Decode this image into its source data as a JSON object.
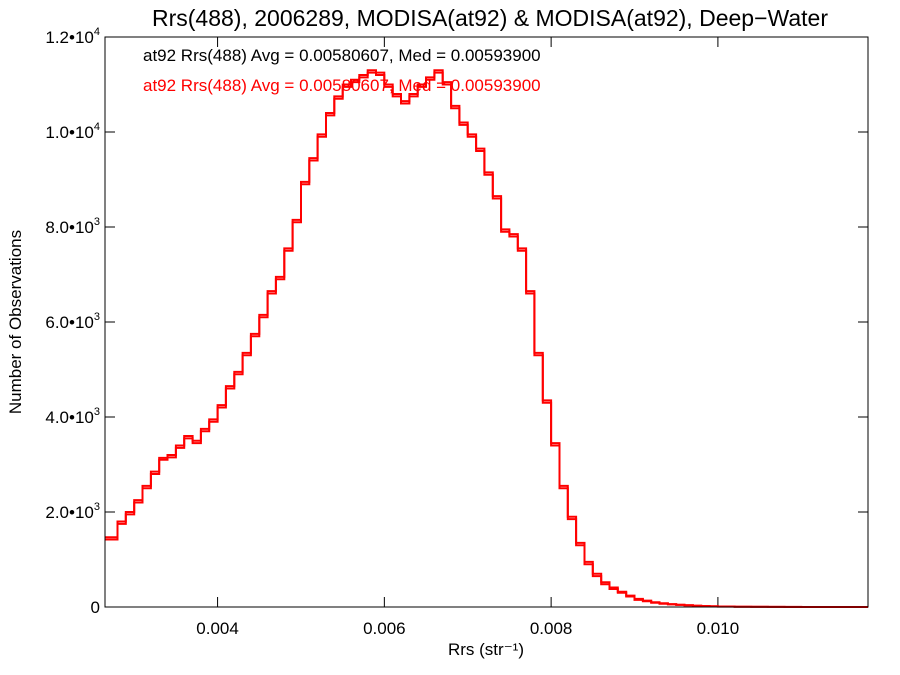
{
  "chart_data": {
    "type": "histogram",
    "title": "Rrs(488), 2006289, MODISA(at92) & MODISA(at92), Deep−Water",
    "xlabel": "Rrs (str⁻¹)",
    "ylabel": "Number of Observations",
    "xlim": [
      0.00265,
      0.0118
    ],
    "ylim": [
      0,
      12000
    ],
    "x_ticks": [
      {
        "value": 0.004,
        "label": "0.004"
      },
      {
        "value": 0.006,
        "label": "0.006"
      },
      {
        "value": 0.008,
        "label": "0.008"
      },
      {
        "value": 0.01,
        "label": "0.010"
      }
    ],
    "y_ticks": [
      {
        "value": 0,
        "label": "0"
      },
      {
        "value": 2000,
        "label": "2.0•103"
      },
      {
        "value": 4000,
        "label": "4.0•103"
      },
      {
        "value": 6000,
        "label": "6.0•103"
      },
      {
        "value": 8000,
        "label": "8.0•103"
      },
      {
        "value": 10000,
        "label": "1.0•104"
      },
      {
        "value": 12000,
        "label": "1.2•104"
      }
    ],
    "annotations": [
      {
        "text": "at92 Rrs(488) Avg = 0.00580607, Med = 0.00593900",
        "color": "#000000"
      },
      {
        "text": "at92 Rrs(488) Avg = 0.00580607, Med = 0.00593900",
        "color": "#ff0000"
      }
    ],
    "series": [
      {
        "color": "#ff0000",
        "points": [
          [
            0.00265,
            1420
          ],
          [
            0.0028,
            1750
          ],
          [
            0.0029,
            1950
          ],
          [
            0.003,
            2200
          ],
          [
            0.0031,
            2500
          ],
          [
            0.0032,
            2800
          ],
          [
            0.0033,
            3100
          ],
          [
            0.0034,
            3150
          ],
          [
            0.0035,
            3350
          ],
          [
            0.0036,
            3550
          ],
          [
            0.0037,
            3450
          ],
          [
            0.0038,
            3700
          ],
          [
            0.0039,
            3900
          ],
          [
            0.004,
            4200
          ],
          [
            0.0041,
            4600
          ],
          [
            0.0042,
            4900
          ],
          [
            0.0043,
            5300
          ],
          [
            0.0044,
            5700
          ],
          [
            0.0045,
            6100
          ],
          [
            0.0046,
            6600
          ],
          [
            0.0047,
            6900
          ],
          [
            0.0048,
            7500
          ],
          [
            0.0049,
            8100
          ],
          [
            0.005,
            8900
          ],
          [
            0.0051,
            9400
          ],
          [
            0.0052,
            9900
          ],
          [
            0.0053,
            10350
          ],
          [
            0.0054,
            10700
          ],
          [
            0.0055,
            10950
          ],
          [
            0.0056,
            11050
          ],
          [
            0.0057,
            11150
          ],
          [
            0.0058,
            11250
          ],
          [
            0.0059,
            11200
          ],
          [
            0.006,
            10950
          ],
          [
            0.0061,
            10750
          ],
          [
            0.0062,
            10600
          ],
          [
            0.0063,
            10750
          ],
          [
            0.0064,
            10950
          ],
          [
            0.0065,
            11100
          ],
          [
            0.0066,
            11250
          ],
          [
            0.0067,
            11000
          ],
          [
            0.0068,
            10500
          ],
          [
            0.0069,
            10150
          ],
          [
            0.007,
            9900
          ],
          [
            0.0071,
            9600
          ],
          [
            0.0072,
            9100
          ],
          [
            0.0073,
            8600
          ],
          [
            0.0074,
            7900
          ],
          [
            0.0075,
            7800
          ],
          [
            0.0076,
            7500
          ],
          [
            0.0077,
            6600
          ],
          [
            0.0078,
            5300
          ],
          [
            0.0079,
            4300
          ],
          [
            0.008,
            3400
          ],
          [
            0.0081,
            2500
          ],
          [
            0.0082,
            1850
          ],
          [
            0.0083,
            1300
          ],
          [
            0.0084,
            900
          ],
          [
            0.0085,
            650
          ],
          [
            0.0086,
            480
          ],
          [
            0.0087,
            380
          ],
          [
            0.0088,
            300
          ],
          [
            0.0089,
            220
          ],
          [
            0.009,
            150
          ],
          [
            0.0091,
            120
          ],
          [
            0.0092,
            90
          ],
          [
            0.0093,
            70
          ],
          [
            0.0094,
            55
          ],
          [
            0.0095,
            45
          ],
          [
            0.0096,
            35
          ],
          [
            0.0097,
            25
          ],
          [
            0.0098,
            18
          ],
          [
            0.0099,
            12
          ],
          [
            0.01,
            8
          ],
          [
            0.0102,
            5
          ],
          [
            0.0104,
            3
          ],
          [
            0.0106,
            2
          ],
          [
            0.0108,
            1
          ],
          [
            0.011,
            1
          ],
          [
            0.0113,
            0
          ],
          [
            0.0118,
            0
          ]
        ]
      },
      {
        "color": "#ff0000",
        "points": [
          [
            0.00265,
            1470
          ],
          [
            0.0028,
            1800
          ],
          [
            0.0029,
            2000
          ],
          [
            0.003,
            2250
          ],
          [
            0.0031,
            2550
          ],
          [
            0.0032,
            2850
          ],
          [
            0.0033,
            3140
          ],
          [
            0.0034,
            3200
          ],
          [
            0.0035,
            3400
          ],
          [
            0.0036,
            3600
          ],
          [
            0.0037,
            3500
          ],
          [
            0.0038,
            3750
          ],
          [
            0.0039,
            3950
          ],
          [
            0.004,
            4250
          ],
          [
            0.0041,
            4650
          ],
          [
            0.0042,
            4950
          ],
          [
            0.0043,
            5350
          ],
          [
            0.0044,
            5750
          ],
          [
            0.0045,
            6150
          ],
          [
            0.0046,
            6650
          ],
          [
            0.0047,
            6950
          ],
          [
            0.0048,
            7550
          ],
          [
            0.0049,
            8150
          ],
          [
            0.005,
            8950
          ],
          [
            0.0051,
            9450
          ],
          [
            0.0052,
            9950
          ],
          [
            0.0053,
            10400
          ],
          [
            0.0054,
            10750
          ],
          [
            0.0055,
            11000
          ],
          [
            0.0056,
            11100
          ],
          [
            0.0057,
            11200
          ],
          [
            0.0058,
            11300
          ],
          [
            0.0059,
            11250
          ],
          [
            0.006,
            11000
          ],
          [
            0.0061,
            10800
          ],
          [
            0.0062,
            10650
          ],
          [
            0.0063,
            10800
          ],
          [
            0.0064,
            11000
          ],
          [
            0.0065,
            11150
          ],
          [
            0.0066,
            11300
          ],
          [
            0.0067,
            11050
          ],
          [
            0.0068,
            10550
          ],
          [
            0.0069,
            10200
          ],
          [
            0.007,
            9950
          ],
          [
            0.0071,
            9650
          ],
          [
            0.0072,
            9150
          ],
          [
            0.0073,
            8650
          ],
          [
            0.0074,
            7950
          ],
          [
            0.0075,
            7850
          ],
          [
            0.0076,
            7550
          ],
          [
            0.0077,
            6650
          ],
          [
            0.0078,
            5350
          ],
          [
            0.0079,
            4350
          ],
          [
            0.008,
            3450
          ],
          [
            0.0081,
            2550
          ],
          [
            0.0082,
            1900
          ],
          [
            0.0083,
            1350
          ],
          [
            0.0084,
            950
          ],
          [
            0.0085,
            700
          ],
          [
            0.0086,
            520
          ],
          [
            0.0087,
            410
          ],
          [
            0.0088,
            320
          ],
          [
            0.0089,
            240
          ],
          [
            0.009,
            170
          ],
          [
            0.0091,
            135
          ],
          [
            0.0092,
            100
          ],
          [
            0.0093,
            80
          ],
          [
            0.0094,
            60
          ],
          [
            0.0095,
            48
          ],
          [
            0.0096,
            38
          ],
          [
            0.0097,
            28
          ],
          [
            0.0098,
            20
          ],
          [
            0.0099,
            14
          ],
          [
            0.01,
            10
          ],
          [
            0.0102,
            6
          ],
          [
            0.0104,
            4
          ],
          [
            0.0106,
            3
          ],
          [
            0.0108,
            2
          ],
          [
            0.011,
            1
          ],
          [
            0.0113,
            0
          ],
          [
            0.0118,
            0
          ]
        ]
      }
    ]
  }
}
